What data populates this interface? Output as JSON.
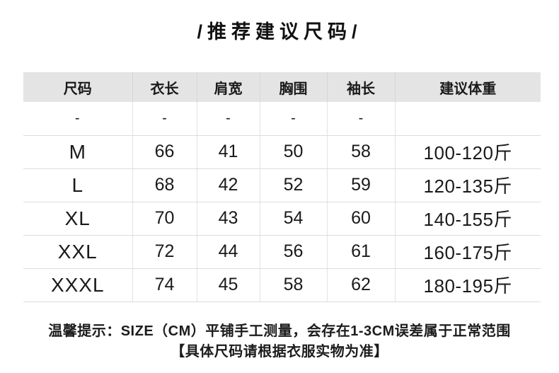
{
  "page": {
    "title_display": "/推荐建议尺码/"
  },
  "colors": {
    "background": "#ffffff",
    "header_bg": "#e4e4e4",
    "grid_line": "#dcdcdc",
    "text": "#1a1a1a"
  },
  "chart_data": {
    "type": "table",
    "title": "推荐建议尺码",
    "columns": [
      "尺码",
      "衣长",
      "肩宽",
      "胸围",
      "袖长",
      "建议体重"
    ],
    "rows": [
      [
        "-",
        "-",
        "-",
        "-",
        "-",
        ""
      ],
      [
        "M",
        "66",
        "41",
        "50",
        "58",
        "100-120斤"
      ],
      [
        "L",
        "68",
        "42",
        "52",
        "59",
        "120-135斤"
      ],
      [
        "XL",
        "70",
        "43",
        "54",
        "60",
        "140-155斤"
      ],
      [
        "XXL",
        "72",
        "44",
        "56",
        "61",
        "160-175斤"
      ],
      [
        "XXXL",
        "74",
        "45",
        "58",
        "62",
        "180-195斤"
      ]
    ],
    "units": "CM",
    "footnotes": [
      "温馨提示：SIZE（CM）平铺手工测量，会存在1-3CM误差属于正常范围",
      "【具体尺码请根据衣服实物为准】"
    ]
  },
  "footer": {
    "line1": "温馨提示：SIZE（CM）平铺手工测量，会存在1-3CM误差属于正常范围",
    "line2": "【具体尺码请根据衣服实物为准】"
  }
}
